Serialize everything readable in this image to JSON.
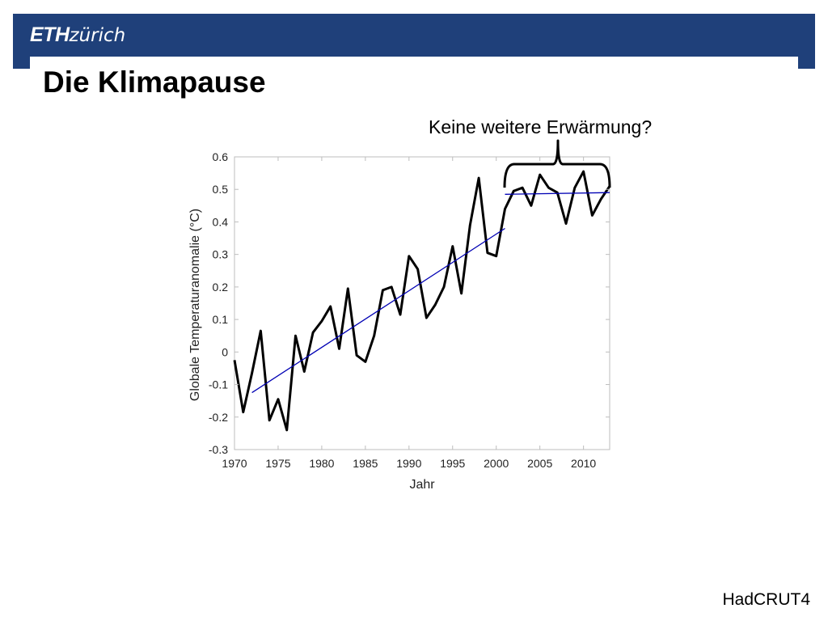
{
  "header": {
    "logo_eth": "ETH",
    "logo_zurich": "zürich",
    "brand_color": "#1f407a"
  },
  "title": "Die Klimapause",
  "annotation": "Keine weitere Erwärmung?",
  "source": "HadCRUT4",
  "chart_data": {
    "type": "line",
    "xlabel": "Jahr",
    "ylabel": "Globale Temperaturanomalie (°C)",
    "xlim": [
      1970,
      2013
    ],
    "ylim": [
      -0.3,
      0.6
    ],
    "xticks": [
      1970,
      1975,
      1980,
      1985,
      1990,
      1995,
      2000,
      2005,
      2010
    ],
    "yticks": [
      -0.3,
      -0.2,
      -0.1,
      0,
      0.1,
      0.2,
      0.3,
      0.4,
      0.5,
      0.6
    ],
    "xtick_labels": [
      "1970",
      "1975",
      "1980",
      "1985",
      "1990",
      "1995",
      "2000",
      "2005",
      "2010"
    ],
    "ytick_labels": [
      "-0.3",
      "-0.2",
      "-0.1",
      "0",
      "0.1",
      "0.2",
      "0.3",
      "0.4",
      "0.5",
      "0.6"
    ],
    "grid": false,
    "series": [
      {
        "color": "#000000",
        "x": [
          1970,
          1971,
          1972,
          1973,
          1974,
          1975,
          1976,
          1977,
          1978,
          1979,
          1980,
          1981,
          1982,
          1983,
          1984,
          1985,
          1986,
          1987,
          1988,
          1989,
          1990,
          1991,
          1992,
          1993,
          1994,
          1995,
          1996,
          1997,
          1998,
          1999,
          2000,
          2001,
          2002,
          2003,
          2004,
          2005,
          2006,
          2007,
          2008,
          2009,
          2010,
          2011,
          2012,
          2013
        ],
        "values": [
          -0.025,
          -0.185,
          -0.065,
          0.065,
          -0.21,
          -0.145,
          -0.24,
          0.05,
          -0.06,
          0.06,
          0.095,
          0.14,
          0.01,
          0.195,
          -0.01,
          -0.03,
          0.05,
          0.19,
          0.2,
          0.115,
          0.295,
          0.255,
          0.105,
          0.145,
          0.2,
          0.325,
          0.18,
          0.39,
          0.535,
          0.305,
          0.295,
          0.44,
          0.495,
          0.505,
          0.45,
          0.545,
          0.505,
          0.49,
          0.395,
          0.505,
          0.555,
          0.42,
          0.47,
          0.51
        ]
      },
      {
        "color": "#0000b4",
        "x": [
          1972,
          2001
        ],
        "values": [
          -0.125,
          0.38
        ]
      },
      {
        "color": "#0000b4",
        "x": [
          2001,
          2013
        ],
        "values": [
          0.485,
          0.49
        ]
      }
    ]
  }
}
